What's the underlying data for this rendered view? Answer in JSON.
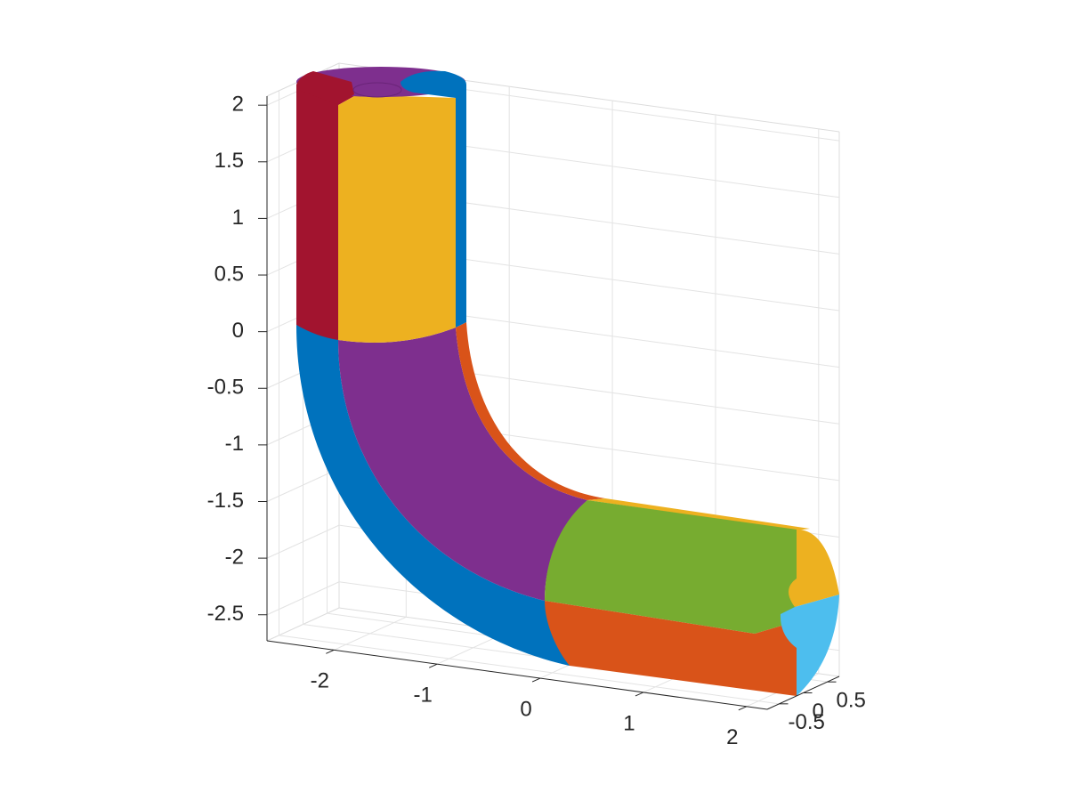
{
  "chart_data": {
    "type": "surface3d",
    "xlim": [
      -2.65,
      2.2
    ],
    "ylim": [
      -0.75,
      0.75
    ],
    "zlim": [
      -2.73,
      2.08
    ],
    "xticks": [
      -2,
      -1,
      0,
      1,
      2
    ],
    "yticks": [
      -0.5,
      0,
      0.5
    ],
    "zticks": [
      -2.5,
      -2,
      -1.5,
      -1,
      -0.5,
      0,
      0.5,
      1,
      1.5,
      2
    ],
    "grid": true
  }
}
